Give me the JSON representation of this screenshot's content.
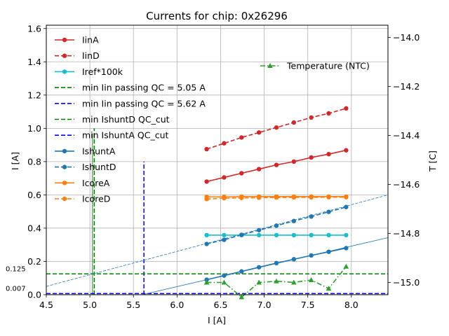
{
  "chart_data": {
    "type": "line",
    "title": "Currents for chip: 0x26296",
    "xlabel": "I [A]",
    "ylabel": "I [A]",
    "y2label": "T [C]",
    "xlim": [
      4.5,
      8.42
    ],
    "ylim": [
      0.0,
      1.62
    ],
    "y2lim": [
      -15.05,
      -13.95
    ],
    "xticks": [
      "4.5",
      "5.0",
      "5.5",
      "6.0",
      "6.5",
      "7.0",
      "7.5",
      "8.0"
    ],
    "xtick_values": [
      4.5,
      5.0,
      5.5,
      6.0,
      6.5,
      7.0,
      7.5,
      8.0
    ],
    "yticks": [
      "0.0",
      "0.2",
      "0.4",
      "0.6",
      "0.8",
      "1.0",
      "1.2",
      "1.4",
      "1.6"
    ],
    "ytick_values": [
      0.0,
      0.2,
      0.4,
      0.6,
      0.8,
      1.0,
      1.2,
      1.4,
      1.6
    ],
    "y2ticks": [
      "−15.0",
      "−14.8",
      "−14.6",
      "−14.4",
      "−14.2",
      "−14.0"
    ],
    "y2tick_values": [
      -15.0,
      -14.8,
      -14.6,
      -14.4,
      -14.2,
      -14.0
    ],
    "grid": true,
    "x": [
      6.34,
      6.54,
      6.74,
      6.94,
      7.14,
      7.34,
      7.54,
      7.74,
      7.94
    ],
    "series": [
      {
        "name": "IinA",
        "color": "#d62728",
        "style": "solid",
        "values": [
          0.68,
          0.705,
          0.73,
          0.755,
          0.78,
          0.8,
          0.825,
          0.845,
          0.868
        ]
      },
      {
        "name": "IinD",
        "color": "#d62728",
        "style": "dashed",
        "values": [
          0.875,
          0.91,
          0.945,
          0.975,
          1.005,
          1.035,
          1.065,
          1.09,
          1.12
        ]
      },
      {
        "name": "Iref*100k",
        "color": "#17becf",
        "style": "solid",
        "values": [
          0.358,
          0.358,
          0.358,
          0.358,
          0.358,
          0.358,
          0.358,
          0.358,
          0.358
        ]
      },
      {
        "name": "IshuntA",
        "color": "#1f77b4",
        "style": "solid",
        "values": [
          0.09,
          0.115,
          0.14,
          0.165,
          0.19,
          0.213,
          0.236,
          0.258,
          0.28
        ]
      },
      {
        "name": "IshuntD",
        "color": "#1f77b4",
        "style": "dashed",
        "values": [
          0.305,
          0.33,
          0.36,
          0.388,
          0.415,
          0.443,
          0.47,
          0.498,
          0.527
        ]
      },
      {
        "name": "IcoreA",
        "color": "#ff7f0e",
        "style": "solid",
        "values": [
          0.588,
          0.588,
          0.59,
          0.59,
          0.59,
          0.59,
          0.59,
          0.59,
          0.59
        ]
      },
      {
        "name": "IcoreD",
        "color": "#ff7f0e",
        "style": "dashed",
        "values": [
          0.575,
          0.58,
          0.582,
          0.583,
          0.584,
          0.585,
          0.585,
          0.586,
          0.586
        ]
      }
    ],
    "temperature": {
      "name": "Temperature (NTC)",
      "color": "#2ca02c",
      "style": "dashdot",
      "axis": "right",
      "values": [
        -15.0,
        -15.0,
        -15.06,
        -15.0,
        -14.995,
        -15.0,
        -14.99,
        -15.025,
        -14.935
      ]
    },
    "vlines": [
      {
        "name": "min Iin passing QC = 5.05 A",
        "x": 5.05,
        "color": "#008000",
        "style": "dashed",
        "ymin": 0.0,
        "ymax": 1.0
      },
      {
        "name": "min Iin passing QC = 5.62 A",
        "x": 5.62,
        "color": "#0000ff",
        "style": "dashed",
        "ymin": 0.0,
        "ymax": 0.8
      }
    ],
    "hlines": [
      {
        "name": "min IshuntD QC_cut",
        "y": 0.125,
        "color": "#008000",
        "style": "dashed",
        "label": "0.125"
      },
      {
        "name": "min IshuntA QC_cut",
        "y": 0.007,
        "color": "#0000ff",
        "style": "dashed",
        "label": "0.007"
      }
    ],
    "fit_lines": [
      {
        "series": "IshuntA",
        "color": "#1f77b4",
        "style": "solid",
        "x0": 5.6,
        "y0": 0.0,
        "x1": 8.42,
        "y1": 0.343
      },
      {
        "series": "IshuntD",
        "color": "#1f77b4",
        "style": "dashed",
        "x0": 4.5,
        "y0": 0.05,
        "x1": 8.42,
        "y1": 0.6
      }
    ],
    "legend": {
      "position": "upper-left",
      "entries": [
        "IinA",
        "IinD",
        "Iref*100k",
        "min Iin passing QC = 5.05 A",
        "min Iin passing QC = 5.62 A",
        "min IshuntD QC_cut",
        "min IshuntA QC_cut",
        "IshuntA",
        "IshuntD",
        "IcoreA",
        "IcoreD"
      ]
    },
    "legend2": {
      "position": "upper-right",
      "entries": [
        "Temperature (NTC)"
      ]
    }
  }
}
